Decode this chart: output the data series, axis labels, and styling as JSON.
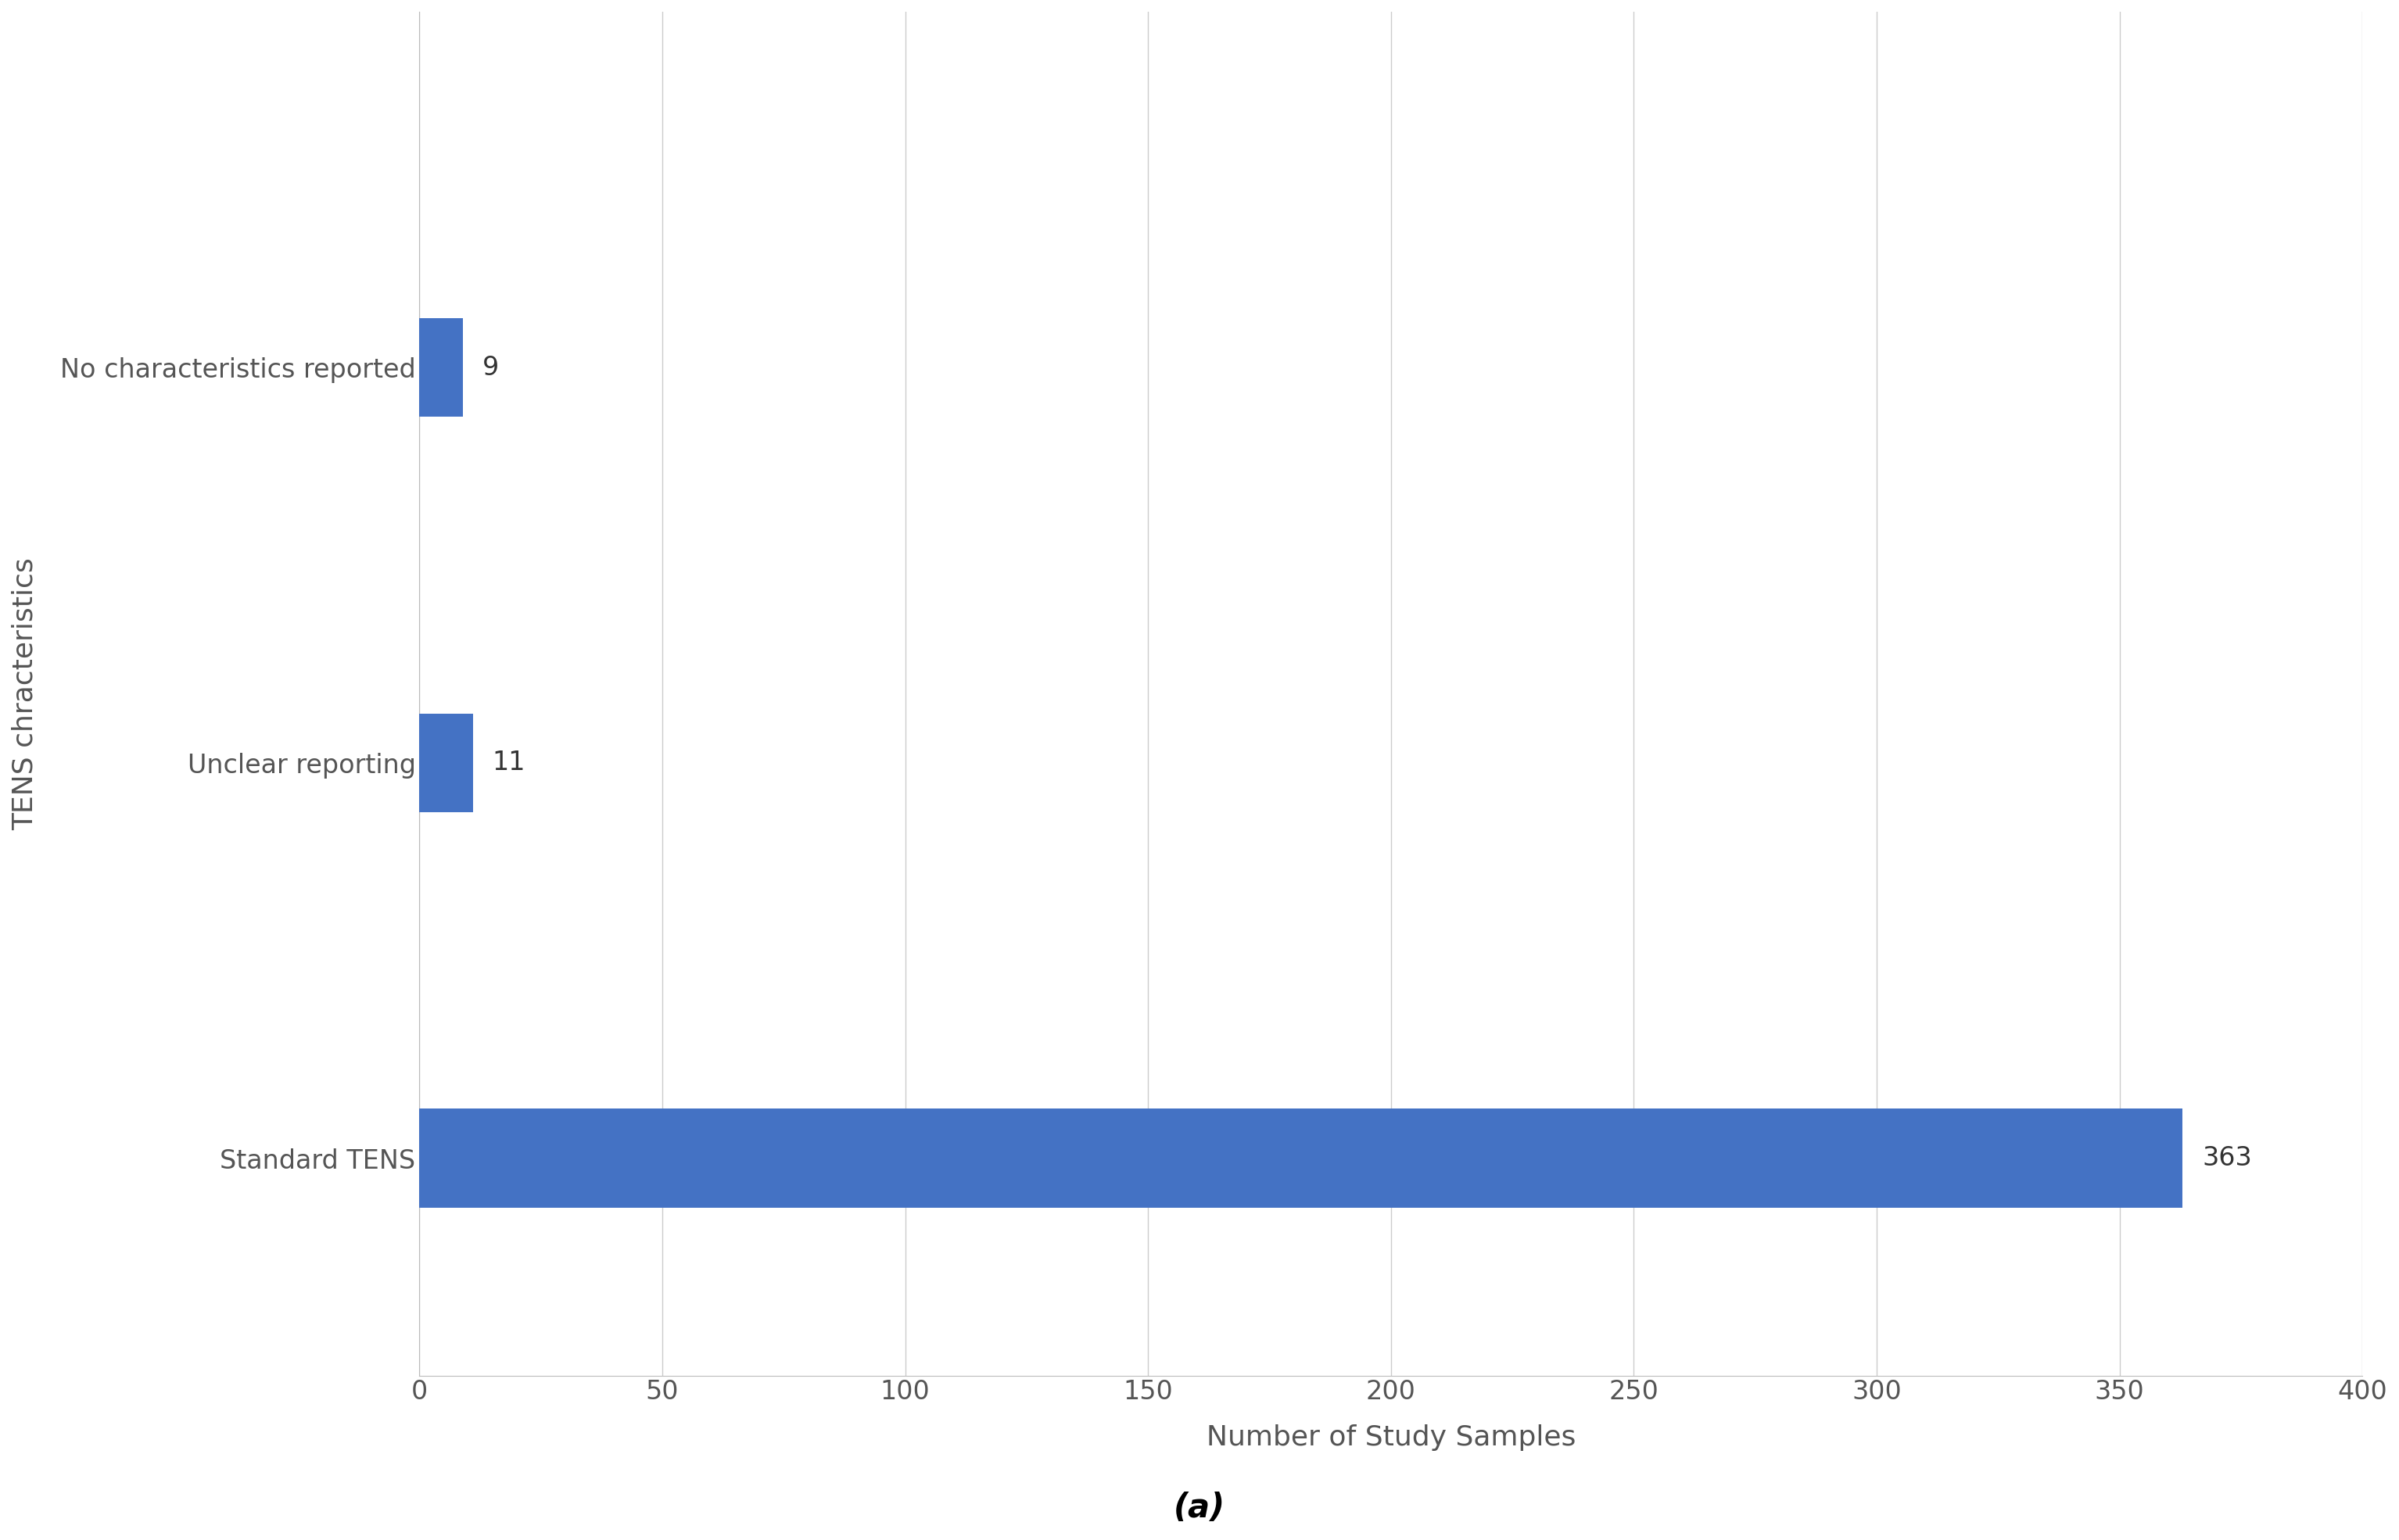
{
  "categories": [
    "Standard TENS",
    "Unclear reporting",
    "No characteristics reported"
  ],
  "values": [
    363,
    11,
    9
  ],
  "bar_color": "#4472C4",
  "xlabel": "Number of Study Samples",
  "ylabel": "TENS chracteristics",
  "xlabel_fontsize": 26,
  "ylabel_fontsize": 26,
  "tick_fontsize": 24,
  "label_fontsize": 24,
  "xlim": [
    0,
    400
  ],
  "xticks": [
    0,
    50,
    100,
    150,
    200,
    250,
    300,
    350,
    400
  ],
  "caption": "(a)",
  "caption_fontsize": 30,
  "background_color": "#ffffff",
  "grid_color": "#cccccc",
  "bar_height": 0.25,
  "text_color": "#555555"
}
